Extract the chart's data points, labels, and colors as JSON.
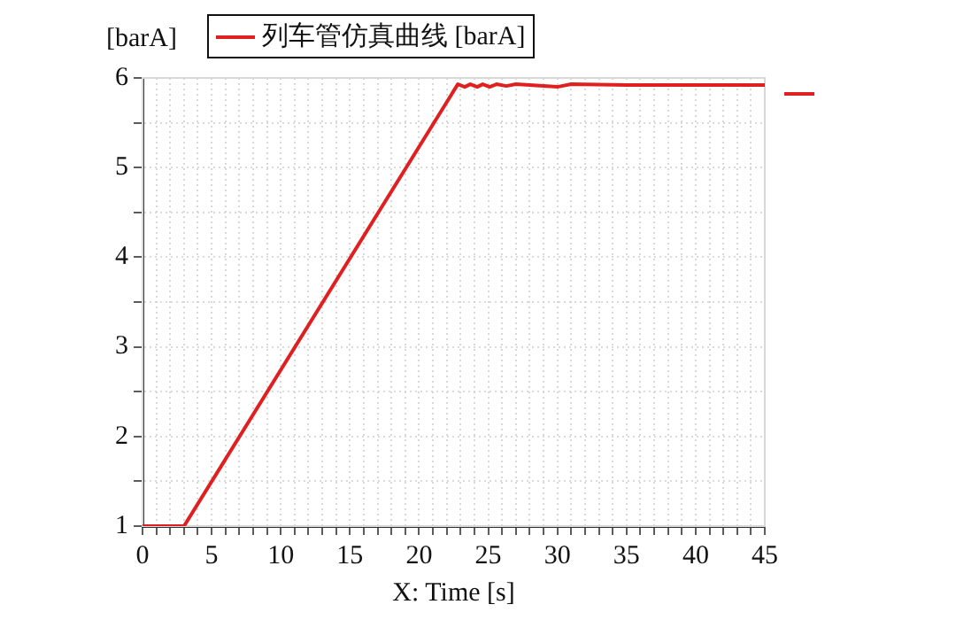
{
  "chart_data": {
    "type": "line",
    "xlabel": "X: Time [s]",
    "ylabel": "[barA]",
    "series": [
      {
        "name": "列车管仿真曲线 [barA]",
        "color": "#e02020",
        "x": [
          0,
          3,
          22.8,
          23.3,
          23.7,
          24.2,
          24.6,
          25.1,
          25.6,
          26.3,
          27,
          28,
          29,
          30,
          31,
          35,
          45
        ],
        "values": [
          1,
          1,
          5.93,
          5.9,
          5.93,
          5.9,
          5.93,
          5.9,
          5.93,
          5.91,
          5.93,
          5.92,
          5.91,
          5.9,
          5.93,
          5.92,
          5.92
        ]
      }
    ],
    "xlim": [
      0,
      45
    ],
    "xticks": [
      0,
      {
        "value": 1,
        "label": null
      },
      {
        "value": 2,
        "label": null
      },
      {
        "value": 3,
        "label": null
      },
      {
        "value": 4,
        "label": null
      },
      5,
      {
        "value": 6,
        "label": null
      },
      {
        "value": 7,
        "label": null
      },
      {
        "value": 8,
        "label": null
      },
      {
        "value": 9,
        "label": null
      },
      10,
      {
        "value": 11,
        "label": null
      },
      {
        "value": 12,
        "label": null
      },
      {
        "value": 13,
        "label": null
      },
      {
        "value": 14,
        "label": null
      },
      15,
      {
        "value": 16,
        "label": null
      },
      {
        "value": 17,
        "label": null
      },
      {
        "value": 18,
        "label": null
      },
      {
        "value": 19,
        "label": null
      },
      20,
      {
        "value": 21,
        "label": null
      },
      {
        "value": 22,
        "label": null
      },
      {
        "value": 23,
        "label": null
      },
      {
        "value": 24,
        "label": null
      },
      25,
      {
        "value": 26,
        "label": null
      },
      {
        "value": 27,
        "label": null
      },
      {
        "value": 28,
        "label": null
      },
      {
        "value": 29,
        "label": null
      },
      30,
      {
        "value": 31,
        "label": null
      },
      {
        "value": 32,
        "label": null
      },
      {
        "value": 33,
        "label": null
      },
      {
        "value": 34,
        "label": null
      },
      35,
      {
        "value": 36,
        "label": null
      },
      {
        "value": 37,
        "label": null
      },
      {
        "value": 38,
        "label": null
      },
      {
        "value": 39,
        "label": null
      },
      40,
      {
        "value": 41,
        "label": null
      },
      {
        "value": 42,
        "label": null
      },
      {
        "value": 43,
        "label": null
      },
      {
        "value": 44,
        "label": null
      },
      45
    ],
    "ylim": [
      1,
      6
    ],
    "yticks": [
      1,
      {
        "value": 1.5,
        "label": null
      },
      2,
      {
        "value": 2.5,
        "label": null
      },
      3,
      {
        "value": 3.5,
        "label": null
      },
      4,
      {
        "value": 4.5,
        "label": null
      },
      5,
      {
        "value": 5.5,
        "label": null
      },
      6
    ],
    "grid": true,
    "legend": "top",
    "marker": "none",
    "line_style": "solid"
  }
}
